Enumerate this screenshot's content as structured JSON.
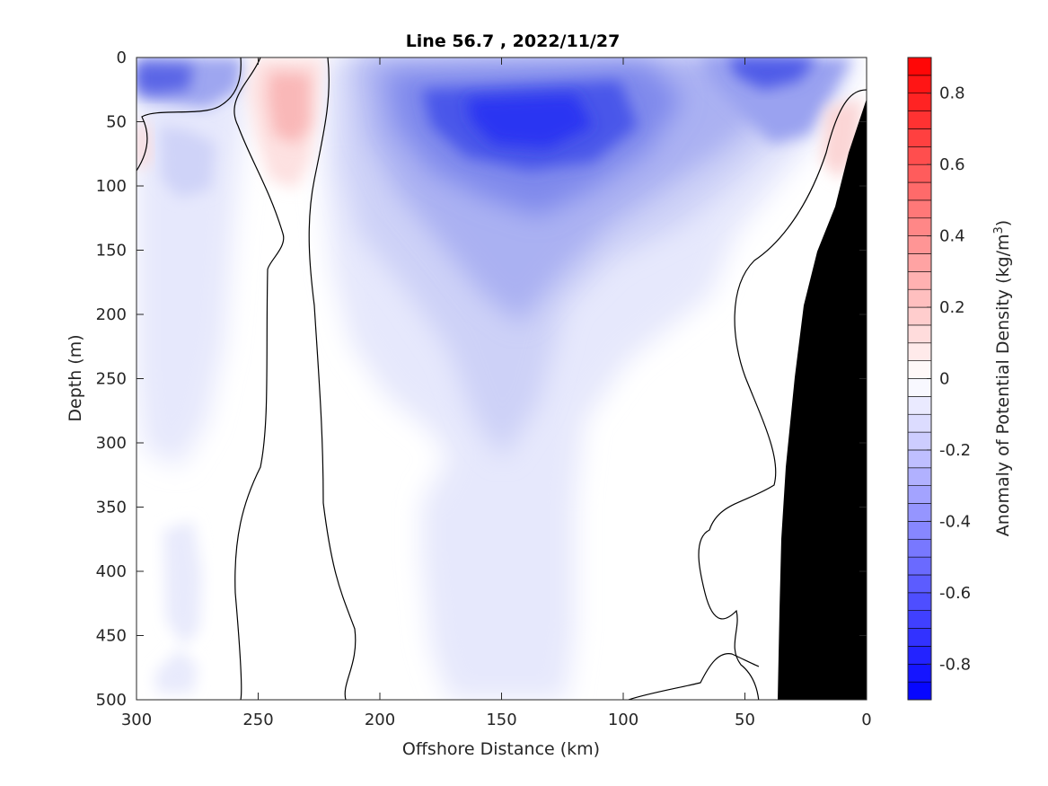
{
  "chart_data": {
    "type": "heatmap",
    "title": "Line 56.7 , 2022/11/27",
    "xlabel": "Offshore Distance (km)",
    "ylabel": "Depth (m)",
    "xlim": [
      300,
      0
    ],
    "ylim": [
      0,
      500
    ],
    "x_reversed": true,
    "y_reversed": true,
    "x_ticks": [
      "300",
      "250",
      "200",
      "150",
      "100",
      "50",
      "0"
    ],
    "x_tick_values": [
      300,
      250,
      200,
      150,
      100,
      50,
      0
    ],
    "y_ticks": [
      "0",
      "50",
      "100",
      "150",
      "200",
      "250",
      "300",
      "350",
      "400",
      "450",
      "500"
    ],
    "y_tick_values": [
      0,
      50,
      100,
      150,
      200,
      250,
      300,
      350,
      400,
      450,
      500
    ],
    "colorbar": {
      "label_main": "Anomaly of Potential Density (kg/m",
      "label_sup": "3",
      "label_end": ")",
      "range": [
        -0.9,
        0.9
      ],
      "step": 0.05,
      "tick_values": [
        0.8,
        0.6,
        0.4,
        0.2,
        0,
        -0.2,
        -0.4,
        -0.6,
        -0.8
      ],
      "tick_labels": [
        "0.8",
        "0.6",
        "0.4",
        "0.2",
        "0",
        "-0.2",
        "-0.4",
        "-0.6",
        "-0.8"
      ],
      "negative_color": "#0000ff",
      "positive_color": "#ff0000",
      "zero_color": "#ffffff"
    },
    "features": [
      {
        "name": "surface-blue-west",
        "x": 290,
        "depth": 20,
        "anomaly": -0.45
      },
      {
        "name": "subsurface-blue-west",
        "x": 278,
        "depth": 80,
        "anomaly": -0.25
      },
      {
        "name": "positive-core",
        "x": 237,
        "depth": 40,
        "anomaly": 0.2
      },
      {
        "name": "central-blue-core",
        "x": 145,
        "depth": 60,
        "anomaly": -0.75
      },
      {
        "name": "central-blue-tongue",
        "x": 150,
        "depth": 250,
        "anomaly": -0.15
      },
      {
        "name": "surface-blue-east",
        "x": 40,
        "depth": 10,
        "anomaly": -0.6
      },
      {
        "name": "coastal-positive",
        "x": 10,
        "depth": 80,
        "anomaly": 0.15
      }
    ],
    "bathymetry_color": "#000000",
    "zero_contour_color": "#000000"
  }
}
